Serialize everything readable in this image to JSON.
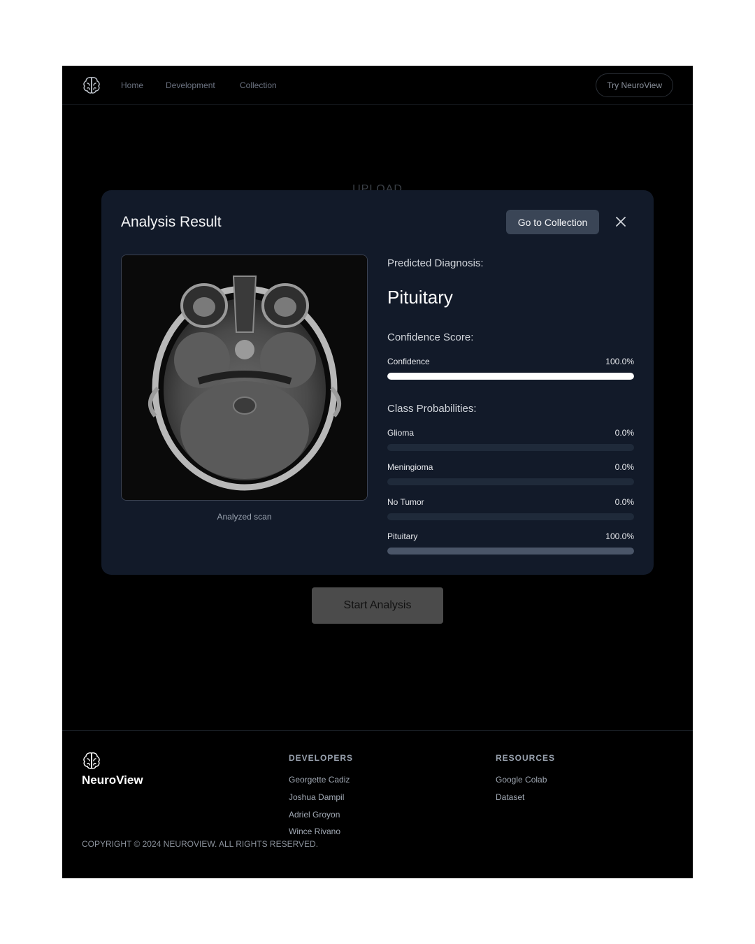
{
  "nav": {
    "links": [
      "Home",
      "Development",
      "Collection"
    ],
    "cta": "Try NeuroView"
  },
  "upload_label": "UPLOAD",
  "modal": {
    "title": "Analysis Result",
    "collection_button": "Go to Collection",
    "scan_caption": "Analyzed scan",
    "predicted_label": "Predicted Diagnosis:",
    "predicted_value": "Pituitary",
    "confidence_heading": "Confidence Score:",
    "confidence": {
      "label": "Confidence",
      "display": "100.0%",
      "value": 1.0
    },
    "class_heading": "Class Probabilities:",
    "classes": [
      {
        "label": "Glioma",
        "display": "0.0%",
        "value": 0.0
      },
      {
        "label": "Meningioma",
        "display": "0.0%",
        "value": 0.0
      },
      {
        "label": "No Tumor",
        "display": "0.0%",
        "value": 0.0
      },
      {
        "label": "Pituitary",
        "display": "100.0%",
        "value": 1.0
      }
    ]
  },
  "start_button": "Start Analysis",
  "footer": {
    "brand": "NeuroView",
    "developers_heading": "DEVELOPERS",
    "developers": [
      "Georgette Cadiz",
      "Joshua Dampil",
      "Adriel Groyon",
      "Wince Rivano"
    ],
    "resources_heading": "RESOURCES",
    "resources": [
      "Google Colab",
      "Dataset"
    ],
    "copyright": "COPYRIGHT © 2024 NEUROVIEW. ALL RIGHTS RESERVED."
  },
  "colors": {
    "confidence_fill": "#ffffff",
    "class_fill": "#4a5568",
    "track": "#1f2a3a",
    "modal_bg": "#121a29"
  },
  "icons": [
    "brain-logo-icon",
    "close-icon"
  ]
}
